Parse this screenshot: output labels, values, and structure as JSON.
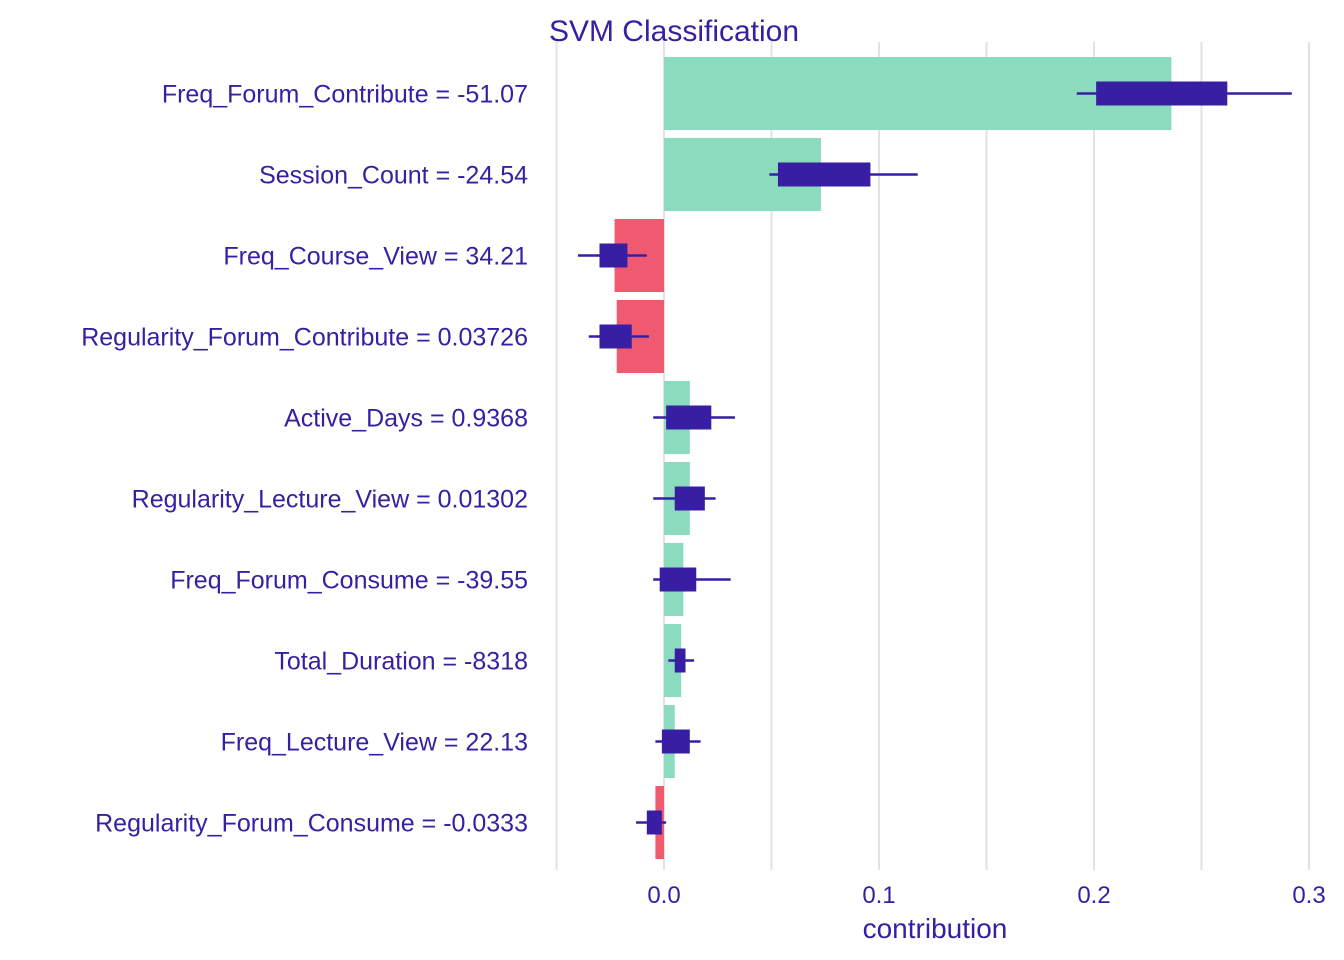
{
  "chart_data": {
    "type": "bar",
    "title": "SVM Classification",
    "xlabel": "contribution",
    "ylabel": "",
    "xlim": [
      -0.05,
      0.3
    ],
    "xticks": [
      0.0,
      0.1,
      0.2,
      0.3
    ],
    "xtick_labels": [
      "0.0",
      "0.1",
      "0.2",
      "0.3"
    ],
    "grid": true,
    "colors": {
      "positive": "#8BDCBE",
      "negative": "#F05A71",
      "boxplot": "#371EA3",
      "text": "#371EA3",
      "grid": "#E2E2E2"
    },
    "features": [
      {
        "label": "Freq_Forum_Contribute = -51.07",
        "contribution": 0.236,
        "whisker": [
          0.192,
          0.292
        ],
        "box": [
          0.201,
          0.262
        ]
      },
      {
        "label": "Session_Count = -24.54",
        "contribution": 0.073,
        "whisker": [
          0.049,
          0.118
        ],
        "box": [
          0.053,
          0.096
        ]
      },
      {
        "label": "Freq_Course_View = 34.21",
        "contribution": -0.023,
        "whisker": [
          -0.04,
          -0.008
        ],
        "box": [
          -0.03,
          -0.017
        ]
      },
      {
        "label": "Regularity_Forum_Contribute = 0.03726",
        "contribution": -0.022,
        "whisker": [
          -0.035,
          -0.007
        ],
        "box": [
          -0.03,
          -0.015
        ]
      },
      {
        "label": "Active_Days = 0.9368",
        "contribution": 0.012,
        "whisker": [
          -0.005,
          0.033
        ],
        "box": [
          0.001,
          0.022
        ]
      },
      {
        "label": "Regularity_Lecture_View = 0.01302",
        "contribution": 0.012,
        "whisker": [
          -0.005,
          0.024
        ],
        "box": [
          0.005,
          0.019
        ]
      },
      {
        "label": "Freq_Forum_Consume = -39.55",
        "contribution": 0.009,
        "whisker": [
          -0.005,
          0.031
        ],
        "box": [
          -0.002,
          0.015
        ]
      },
      {
        "label": "Total_Duration = -8318",
        "contribution": 0.008,
        "whisker": [
          0.002,
          0.014
        ],
        "box": [
          0.005,
          0.01
        ]
      },
      {
        "label": "Freq_Lecture_View = 22.13",
        "contribution": 0.005,
        "whisker": [
          -0.004,
          0.017
        ],
        "box": [
          -0.001,
          0.012
        ]
      },
      {
        "label": "Regularity_Forum_Consume = -0.0333",
        "contribution": -0.004,
        "whisker": [
          -0.013,
          0.001
        ],
        "box": [
          -0.008,
          -0.001
        ]
      }
    ]
  }
}
